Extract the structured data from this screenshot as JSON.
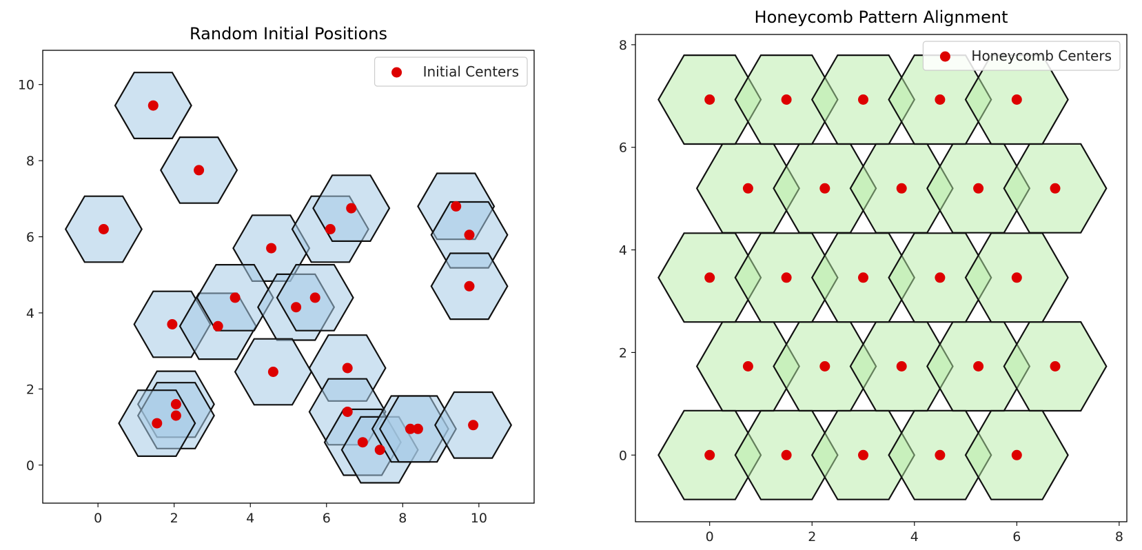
{
  "colors": {
    "center": "#dd0000",
    "hex_fill_left": "#a6cbe6",
    "hex_fill_right": "#b5eca6",
    "hex_edge": "#111111"
  },
  "chart_data": [
    {
      "type": "scatter",
      "title": "Random Initial Positions",
      "xlabel": "",
      "ylabel": "",
      "xlim": [
        -1.45,
        11.45
      ],
      "ylim": [
        -1.0,
        10.9
      ],
      "xticks": [
        0,
        2,
        4,
        6,
        8,
        10
      ],
      "yticks": [
        0,
        2,
        4,
        6,
        8,
        10
      ],
      "grid": false,
      "legend_position": "top-right",
      "hex_radius": 1.0,
      "hex_fill_opacity": 0.55,
      "series": [
        {
          "name": "Initial Centers",
          "points": [
            [
              1.45,
              9.45
            ],
            [
              2.65,
              7.75
            ],
            [
              0.15,
              6.2
            ],
            [
              4.55,
              5.7
            ],
            [
              6.1,
              6.2
            ],
            [
              6.65,
              6.75
            ],
            [
              9.4,
              6.8
            ],
            [
              9.75,
              6.05
            ],
            [
              9.75,
              4.7
            ],
            [
              1.95,
              3.7
            ],
            [
              3.15,
              3.65
            ],
            [
              3.6,
              4.4
            ],
            [
              5.2,
              4.15
            ],
            [
              5.7,
              4.4
            ],
            [
              4.6,
              2.45
            ],
            [
              6.55,
              2.55
            ],
            [
              6.55,
              1.4
            ],
            [
              2.05,
              1.6
            ],
            [
              2.05,
              1.3
            ],
            [
              1.55,
              1.1
            ],
            [
              6.95,
              0.6
            ],
            [
              7.4,
              0.4
            ],
            [
              8.2,
              0.95
            ],
            [
              8.4,
              0.95
            ],
            [
              9.85,
              1.05
            ]
          ]
        }
      ]
    },
    {
      "type": "scatter",
      "title": "Honeycomb Pattern Alignment",
      "xlabel": "",
      "ylabel": "",
      "xlim": [
        -1.45,
        8.15
      ],
      "ylim": [
        -1.3,
        8.2
      ],
      "xticks": [
        0,
        2,
        4,
        6,
        8
      ],
      "yticks": [
        0,
        2,
        4,
        6,
        8
      ],
      "grid": false,
      "legend_position": "top-right",
      "hex_radius": 1.0,
      "hex_fill_opacity": 0.5,
      "series": [
        {
          "name": "Honeycomb Centers",
          "points": [
            [
              0,
              0
            ],
            [
              1.5,
              0
            ],
            [
              3,
              0
            ],
            [
              4.5,
              0
            ],
            [
              6,
              0
            ],
            [
              0.75,
              1.73
            ],
            [
              2.25,
              1.73
            ],
            [
              3.75,
              1.73
            ],
            [
              5.25,
              1.73
            ],
            [
              6.75,
              1.73
            ],
            [
              0,
              3.46
            ],
            [
              1.5,
              3.46
            ],
            [
              3,
              3.46
            ],
            [
              4.5,
              3.46
            ],
            [
              6,
              3.46
            ],
            [
              0.75,
              5.2
            ],
            [
              2.25,
              5.2
            ],
            [
              3.75,
              5.2
            ],
            [
              5.25,
              5.2
            ],
            [
              6.75,
              5.2
            ],
            [
              0,
              6.93
            ],
            [
              1.5,
              6.93
            ],
            [
              3,
              6.93
            ],
            [
              4.5,
              6.93
            ],
            [
              6,
              6.93
            ]
          ]
        }
      ]
    }
  ]
}
